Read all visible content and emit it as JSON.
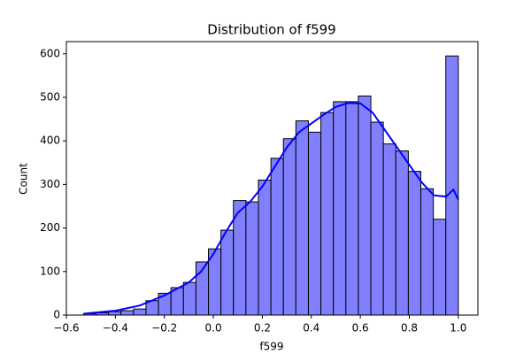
{
  "chart_data": {
    "type": "histogram",
    "title": "Distribution of f599",
    "x_label": "f599",
    "y_label": "Count",
    "bins": [
      -0.53,
      -0.479,
      -0.428,
      -0.377,
      -0.326,
      -0.275,
      -0.224,
      -0.173,
      -0.122,
      -0.071,
      -0.02,
      0.031,
      0.082,
      0.133,
      0.184,
      0.235,
      0.286,
      0.337,
      0.388,
      0.439,
      0.49,
      0.541,
      0.592,
      0.643,
      0.694,
      0.745,
      0.796,
      0.847,
      0.898,
      0.949,
      1.0
    ],
    "values": [
      3,
      5,
      8,
      10,
      14,
      33,
      50,
      63,
      75,
      122,
      152,
      195,
      263,
      260,
      310,
      360,
      405,
      446,
      420,
      465,
      490,
      490,
      503,
      443,
      393,
      377,
      330,
      290,
      220,
      595
    ],
    "color": "#8080ff",
    "edgecolor": "#000000",
    "kde": {
      "color": "#0000ff",
      "x": [
        -0.53,
        -0.4,
        -0.3,
        -0.2,
        -0.1,
        -0.05,
        0.0,
        0.05,
        0.1,
        0.15,
        0.2,
        0.25,
        0.3,
        0.35,
        0.4,
        0.45,
        0.5,
        0.55,
        0.6,
        0.65,
        0.7,
        0.75,
        0.8,
        0.85,
        0.9,
        0.95,
        0.98,
        1.0
      ],
      "y": [
        3,
        10,
        22,
        45,
        75,
        100,
        140,
        190,
        235,
        260,
        295,
        340,
        385,
        420,
        440,
        460,
        478,
        487,
        486,
        465,
        425,
        385,
        345,
        305,
        275,
        272,
        288,
        265
      ]
    },
    "xlim": [
      -0.6,
      1.08
    ],
    "ylim": [
      0,
      628
    ],
    "xticks": [
      {
        "value": -0.6,
        "label": "−0.6"
      },
      {
        "value": -0.4,
        "label": "−0.4"
      },
      {
        "value": -0.2,
        "label": "−0.2"
      },
      {
        "value": 0,
        "label": "0.0"
      },
      0.2,
      0.4,
      0.6,
      0.8,
      {
        "value": 1,
        "label": "1.0"
      }
    ],
    "yticks": [
      0,
      100,
      200,
      300,
      400,
      500,
      600
    ]
  }
}
